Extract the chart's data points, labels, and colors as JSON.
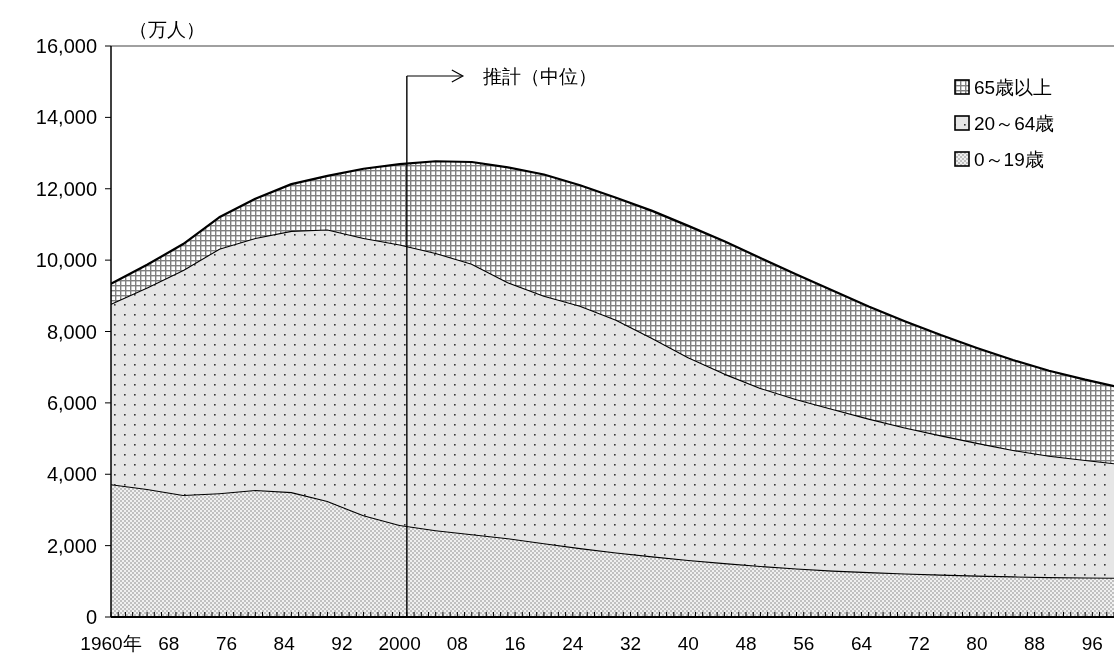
{
  "chart_data": {
    "type": "area",
    "stacked": true,
    "ylabel": "（万人）",
    "x": [
      1960,
      1965,
      1970,
      1975,
      1980,
      1985,
      1990,
      1995,
      2000,
      2005,
      2010,
      2015,
      2020,
      2025,
      2030,
      2035,
      2040,
      2045,
      2050,
      2055,
      2060,
      2065,
      2070,
      2075,
      2080,
      2085,
      2090,
      2095,
      2099
    ],
    "series": [
      {
        "name": "0～19歳",
        "color": "#c0c0c0",
        "values": [
          3720,
          3590,
          3420,
          3470,
          3560,
          3500,
          3250,
          2850,
          2580,
          2430,
          2320,
          2210,
          2070,
          1930,
          1810,
          1700,
          1600,
          1510,
          1430,
          1360,
          1300,
          1260,
          1220,
          1190,
          1160,
          1140,
          1120,
          1110,
          1100
        ]
      },
      {
        "name": "20～64歳",
        "color": "#e6e6e6",
        "values": [
          5060,
          5640,
          6300,
          6850,
          7060,
          7320,
          7610,
          7770,
          7860,
          7770,
          7580,
          7170,
          6930,
          6790,
          6520,
          6120,
          5680,
          5310,
          4990,
          4740,
          4530,
          4300,
          4090,
          3900,
          3720,
          3540,
          3400,
          3290,
          3210
        ]
      },
      {
        "name": "65歳以上",
        "color": "#808080",
        "values": [
          560,
          640,
          730,
          880,
          1100,
          1310,
          1500,
          1940,
          2250,
          2570,
          2850,
          3220,
          3400,
          3380,
          3420,
          3560,
          3680,
          3710,
          3640,
          3500,
          3320,
          3140,
          2980,
          2810,
          2660,
          2520,
          2380,
          2250,
          2160
        ]
      }
    ],
    "xlim": [
      1960,
      2099
    ],
    "ylim": [
      0,
      16000
    ],
    "yticks": [
      0,
      {
        "value": 2000,
        "label": "2,000"
      },
      {
        "value": 4000,
        "label": "4,000"
      },
      {
        "value": 6000,
        "label": "6,000"
      },
      {
        "value": 8000,
        "label": "8,000"
      },
      {
        "value": 10000,
        "label": "10,000"
      },
      {
        "value": 12000,
        "label": "12,000"
      },
      {
        "value": 14000,
        "label": "14,000"
      },
      {
        "value": 16000,
        "label": "16,000"
      }
    ],
    "xticks": [
      {
        "value": 1960,
        "label": "1960年"
      },
      {
        "value": 1961,
        "label": null
      },
      {
        "value": 1962,
        "label": null
      },
      {
        "value": 1963,
        "label": null
      },
      {
        "value": 1964,
        "label": null
      },
      {
        "value": 1965,
        "label": null
      },
      {
        "value": 1966,
        "label": null
      },
      {
        "value": 1967,
        "label": null
      },
      {
        "value": 1968,
        "label": "68"
      },
      {
        "value": 1969,
        "label": null
      },
      {
        "value": 1970,
        "label": null
      },
      {
        "value": 1971,
        "label": null
      },
      {
        "value": 1972,
        "label": null
      },
      {
        "value": 1973,
        "label": null
      },
      {
        "value": 1974,
        "label": null
      },
      {
        "value": 1975,
        "label": null
      },
      {
        "value": 1976,
        "label": "76"
      },
      {
        "value": 1977,
        "label": null
      },
      {
        "value": 1978,
        "label": null
      },
      {
        "value": 1979,
        "label": null
      },
      {
        "value": 1980,
        "label": null
      },
      {
        "value": 1981,
        "label": null
      },
      {
        "value": 1982,
        "label": null
      },
      {
        "value": 1983,
        "label": null
      },
      {
        "value": 1984,
        "label": "84"
      },
      {
        "value": 1985,
        "label": null
      },
      {
        "value": 1986,
        "label": null
      },
      {
        "value": 1987,
        "label": null
      },
      {
        "value": 1988,
        "label": null
      },
      {
        "value": 1989,
        "label": null
      },
      {
        "value": 1990,
        "label": null
      },
      {
        "value": 1991,
        "label": null
      },
      {
        "value": 1992,
        "label": "92"
      },
      {
        "value": 1993,
        "label": null
      },
      {
        "value": 1994,
        "label": null
      },
      {
        "value": 1995,
        "label": null
      },
      {
        "value": 1996,
        "label": null
      },
      {
        "value": 1997,
        "label": null
      },
      {
        "value": 1998,
        "label": null
      },
      {
        "value": 1999,
        "label": null
      },
      {
        "value": 2000,
        "label": "2000"
      },
      {
        "value": 2001,
        "label": null
      },
      {
        "value": 2002,
        "label": null
      },
      {
        "value": 2003,
        "label": null
      },
      {
        "value": 2004,
        "label": null
      },
      {
        "value": 2005,
        "label": null
      },
      {
        "value": 2006,
        "label": null
      },
      {
        "value": 2007,
        "label": null
      },
      {
        "value": 2008,
        "label": "08"
      },
      {
        "value": 2009,
        "label": null
      },
      {
        "value": 2010,
        "label": null
      },
      {
        "value": 2011,
        "label": null
      },
      {
        "value": 2012,
        "label": null
      },
      {
        "value": 2013,
        "label": null
      },
      {
        "value": 2014,
        "label": null
      },
      {
        "value": 2015,
        "label": null
      },
      {
        "value": 2016,
        "label": "16"
      },
      {
        "value": 2017,
        "label": null
      },
      {
        "value": 2018,
        "label": null
      },
      {
        "value": 2019,
        "label": null
      },
      {
        "value": 2020,
        "label": null
      },
      {
        "value": 2021,
        "label": null
      },
      {
        "value": 2022,
        "label": null
      },
      {
        "value": 2023,
        "label": null
      },
      {
        "value": 2024,
        "label": "24"
      },
      {
        "value": 2025,
        "label": null
      },
      {
        "value": 2026,
        "label": null
      },
      {
        "value": 2027,
        "label": null
      },
      {
        "value": 2028,
        "label": null
      },
      {
        "value": 2029,
        "label": null
      },
      {
        "value": 2030,
        "label": null
      },
      {
        "value": 2031,
        "label": null
      },
      {
        "value": 2032,
        "label": "32"
      },
      {
        "value": 2033,
        "label": null
      },
      {
        "value": 2034,
        "label": null
      },
      {
        "value": 2035,
        "label": null
      },
      {
        "value": 2036,
        "label": null
      },
      {
        "value": 2037,
        "label": null
      },
      {
        "value": 2038,
        "label": null
      },
      {
        "value": 2039,
        "label": null
      },
      {
        "value": 2040,
        "label": "40"
      },
      {
        "value": 2041,
        "label": null
      },
      {
        "value": 2042,
        "label": null
      },
      {
        "value": 2043,
        "label": null
      },
      {
        "value": 2044,
        "label": null
      },
      {
        "value": 2045,
        "label": null
      },
      {
        "value": 2046,
        "label": null
      },
      {
        "value": 2047,
        "label": null
      },
      {
        "value": 2048,
        "label": "48"
      },
      {
        "value": 2049,
        "label": null
      },
      {
        "value": 2050,
        "label": null
      },
      {
        "value": 2051,
        "label": null
      },
      {
        "value": 2052,
        "label": null
      },
      {
        "value": 2053,
        "label": null
      },
      {
        "value": 2054,
        "label": null
      },
      {
        "value": 2055,
        "label": null
      },
      {
        "value": 2056,
        "label": "56"
      },
      {
        "value": 2057,
        "label": null
      },
      {
        "value": 2058,
        "label": null
      },
      {
        "value": 2059,
        "label": null
      },
      {
        "value": 2060,
        "label": null
      },
      {
        "value": 2061,
        "label": null
      },
      {
        "value": 2062,
        "label": null
      },
      {
        "value": 2063,
        "label": null
      },
      {
        "value": 2064,
        "label": "64"
      },
      {
        "value": 2065,
        "label": null
      },
      {
        "value": 2066,
        "label": null
      },
      {
        "value": 2067,
        "label": null
      },
      {
        "value": 2068,
        "label": null
      },
      {
        "value": 2069,
        "label": null
      },
      {
        "value": 2070,
        "label": null
      },
      {
        "value": 2071,
        "label": null
      },
      {
        "value": 2072,
        "label": "72"
      },
      {
        "value": 2073,
        "label": null
      },
      {
        "value": 2074,
        "label": null
      },
      {
        "value": 2075,
        "label": null
      },
      {
        "value": 2076,
        "label": null
      },
      {
        "value": 2077,
        "label": null
      },
      {
        "value": 2078,
        "label": null
      },
      {
        "value": 2079,
        "label": null
      },
      {
        "value": 2080,
        "label": "80"
      },
      {
        "value": 2081,
        "label": null
      },
      {
        "value": 2082,
        "label": null
      },
      {
        "value": 2083,
        "label": null
      },
      {
        "value": 2084,
        "label": null
      },
      {
        "value": 2085,
        "label": null
      },
      {
        "value": 2086,
        "label": null
      },
      {
        "value": 2087,
        "label": null
      },
      {
        "value": 2088,
        "label": "88"
      },
      {
        "value": 2089,
        "label": null
      },
      {
        "value": 2090,
        "label": null
      },
      {
        "value": 2091,
        "label": null
      },
      {
        "value": 2092,
        "label": null
      },
      {
        "value": 2093,
        "label": null
      },
      {
        "value": 2094,
        "label": null
      },
      {
        "value": 2095,
        "label": null
      },
      {
        "value": 2096,
        "label": "96"
      },
      {
        "value": 2097,
        "label": null
      },
      {
        "value": 2098,
        "label": null
      },
      {
        "value": 2099,
        "label": null
      }
    ],
    "ref_lines": [
      {
        "axis": "x",
        "value": 2001,
        "label": "推計（中位）"
      }
    ],
    "legend": "top right"
  }
}
